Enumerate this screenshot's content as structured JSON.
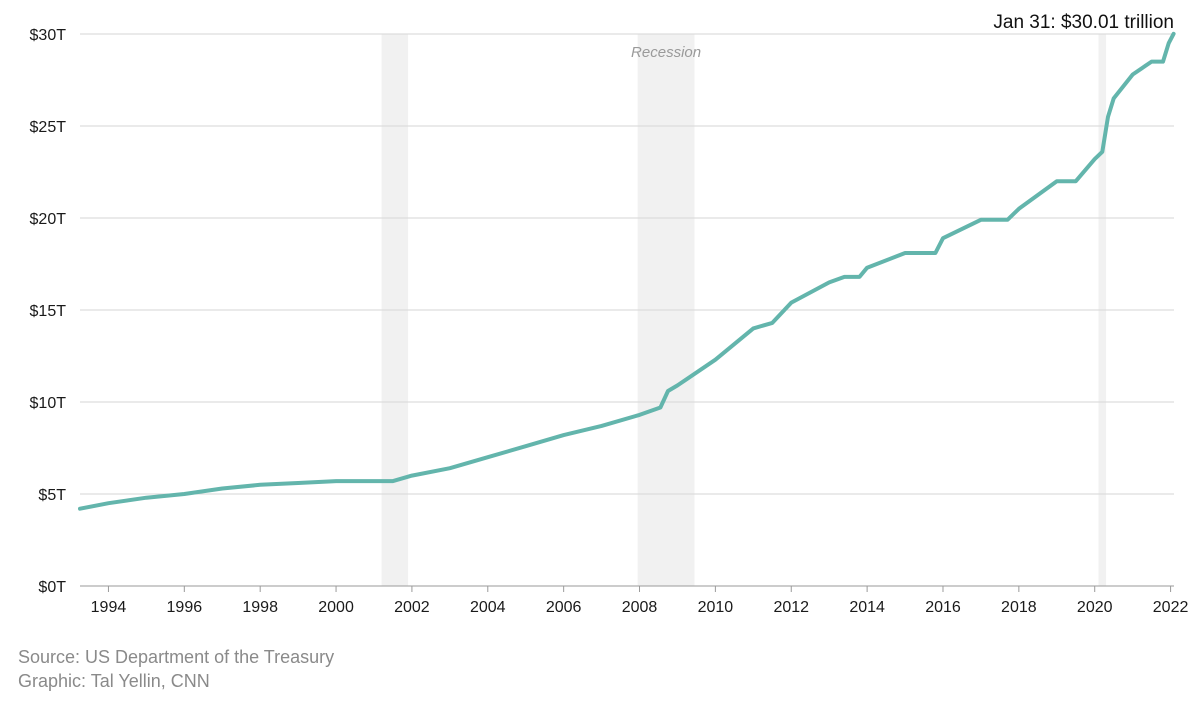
{
  "chart_data": {
    "type": "line",
    "title": "",
    "xlabel": "",
    "ylabel": "",
    "x_range": [
      1993.25,
      2022.09
    ],
    "ylim": [
      0,
      30
    ],
    "y_ticks": [
      0,
      5,
      10,
      15,
      20,
      25,
      30
    ],
    "y_tick_labels": [
      "$0T",
      "$5T",
      "$10T",
      "$15T",
      "$20T",
      "$25T",
      "$30T"
    ],
    "x_ticks": [
      1994,
      1996,
      1998,
      2000,
      2002,
      2004,
      2006,
      2008,
      2010,
      2012,
      2014,
      2016,
      2018,
      2020,
      2022
    ],
    "x_tick_labels": [
      "1994",
      "1996",
      "1998",
      "2000",
      "2002",
      "2004",
      "2006",
      "2008",
      "2010",
      "2012",
      "2014",
      "2016",
      "2018",
      "2020",
      "2022"
    ],
    "grid": "horizontal",
    "line_color": "#63b5ac",
    "recession_color": "#f1f1f1",
    "recessions": [
      {
        "start": 2001.2,
        "end": 2001.9
      },
      {
        "start": 2007.95,
        "end": 2009.45
      },
      {
        "start": 2020.1,
        "end": 2020.3
      }
    ],
    "recession_label": "Recession",
    "annotation": "Jan 31: $30.01 trillion",
    "series": [
      {
        "values": [
          [
            1993.25,
            4.2
          ],
          [
            1994.0,
            4.5
          ],
          [
            1995.0,
            4.8
          ],
          [
            1996.0,
            5.0
          ],
          [
            1997.0,
            5.3
          ],
          [
            1998.0,
            5.5
          ],
          [
            1999.0,
            5.6
          ],
          [
            2000.0,
            5.7
          ],
          [
            2000.5,
            5.7
          ],
          [
            2001.0,
            5.7
          ],
          [
            2001.5,
            5.7
          ],
          [
            2002.0,
            6.0
          ],
          [
            2003.0,
            6.4
          ],
          [
            2004.0,
            7.0
          ],
          [
            2005.0,
            7.6
          ],
          [
            2006.0,
            8.2
          ],
          [
            2007.0,
            8.7
          ],
          [
            2008.0,
            9.3
          ],
          [
            2008.55,
            9.7
          ],
          [
            2008.75,
            10.6
          ],
          [
            2009.0,
            10.9
          ],
          [
            2010.0,
            12.3
          ],
          [
            2011.0,
            14.0
          ],
          [
            2011.5,
            14.3
          ],
          [
            2012.0,
            15.4
          ],
          [
            2013.0,
            16.5
          ],
          [
            2013.4,
            16.8
          ],
          [
            2013.8,
            16.8
          ],
          [
            2014.0,
            17.3
          ],
          [
            2015.0,
            18.1
          ],
          [
            2015.8,
            18.1
          ],
          [
            2016.0,
            18.9
          ],
          [
            2017.0,
            19.9
          ],
          [
            2017.7,
            19.9
          ],
          [
            2018.0,
            20.5
          ],
          [
            2019.0,
            22.0
          ],
          [
            2019.5,
            22.0
          ],
          [
            2020.0,
            23.2
          ],
          [
            2020.2,
            23.6
          ],
          [
            2020.35,
            25.5
          ],
          [
            2020.5,
            26.5
          ],
          [
            2021.0,
            27.8
          ],
          [
            2021.5,
            28.5
          ],
          [
            2021.8,
            28.5
          ],
          [
            2021.95,
            29.5
          ],
          [
            2022.08,
            30.01
          ]
        ]
      }
    ]
  },
  "footer": {
    "source": "Source: US Department of the Treasury",
    "graphic": "Graphic: Tal Yellin, CNN"
  }
}
